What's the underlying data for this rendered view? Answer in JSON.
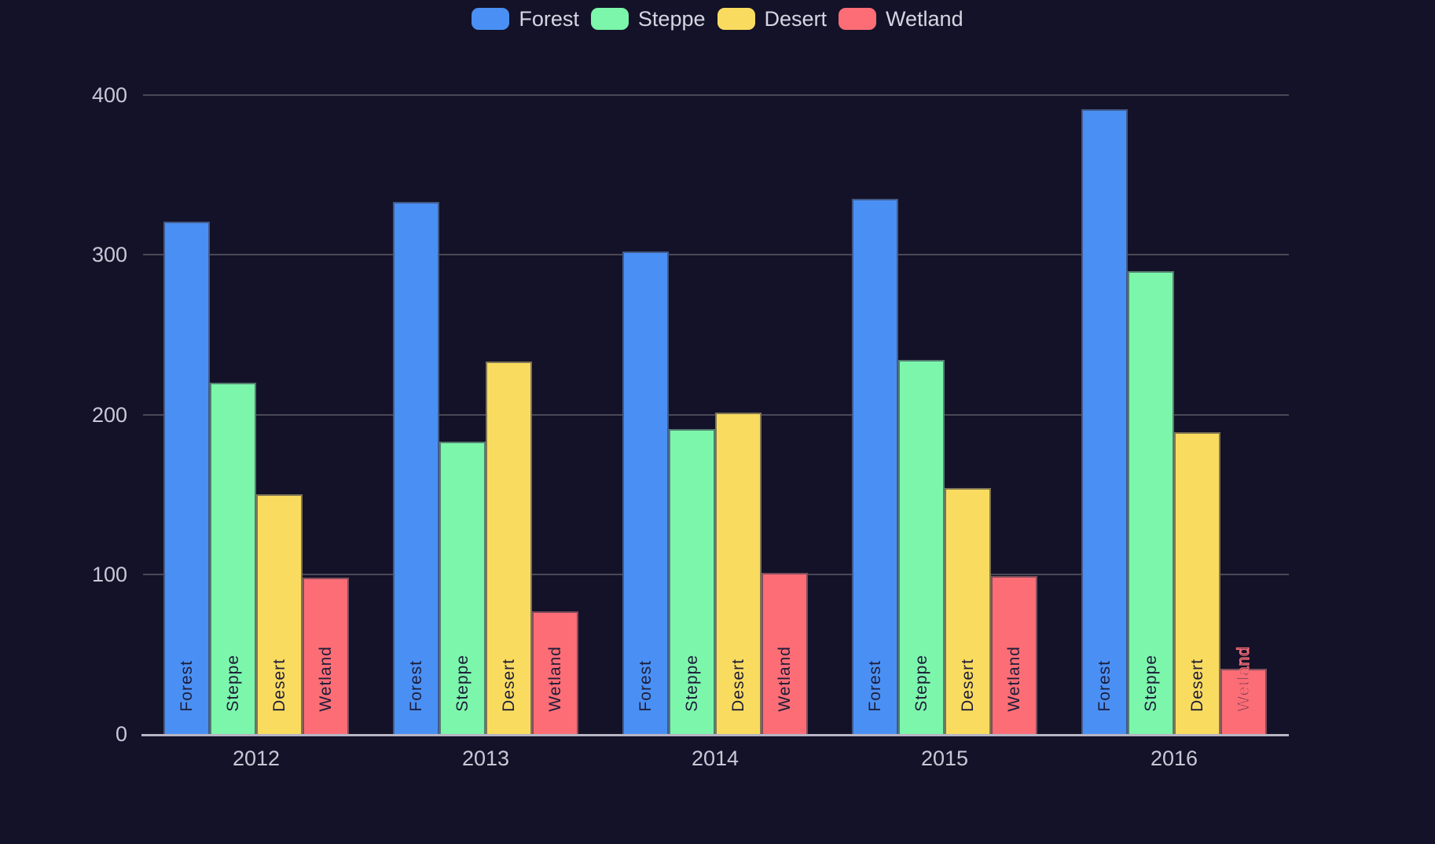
{
  "chart_data": {
    "type": "bar",
    "title": "",
    "xlabel": "",
    "ylabel": "",
    "categories": [
      "2012",
      "2013",
      "2014",
      "2015",
      "2016"
    ],
    "series": [
      {
        "name": "Forest",
        "color": "#4a90f4",
        "values": [
          321,
          333,
          302,
          335,
          391
        ]
      },
      {
        "name": "Steppe",
        "color": "#7cf6ab",
        "values": [
          220,
          183,
          191,
          234,
          290
        ]
      },
      {
        "name": "Desert",
        "color": "#f9dc5f",
        "values": [
          150,
          233,
          201,
          154,
          189
        ]
      },
      {
        "name": "Wetland",
        "color": "#fc6d76",
        "values": [
          98,
          77,
          101,
          99,
          41
        ]
      }
    ],
    "ylim": [
      0,
      400
    ],
    "yticks": [
      0,
      100,
      200,
      300,
      400
    ],
    "y_tick_labels": [
      "0",
      "100",
      "200",
      "300",
      "400"
    ],
    "grid": "horizontal",
    "legend_position": "top-center",
    "bar_label_style": "series name drawn vertically (bottom-to-top) near the base of each bar"
  },
  "legend": {
    "items": [
      "Forest",
      "Steppe",
      "Desert",
      "Wetland"
    ]
  },
  "colors": {
    "background": "#141228",
    "gridline": "#4a4856",
    "axis_line": "#b7b5c4",
    "tick_text": "#c9c8d6",
    "legend_text": "#d6d5e2",
    "bar_label_text": "#1e1c39"
  }
}
